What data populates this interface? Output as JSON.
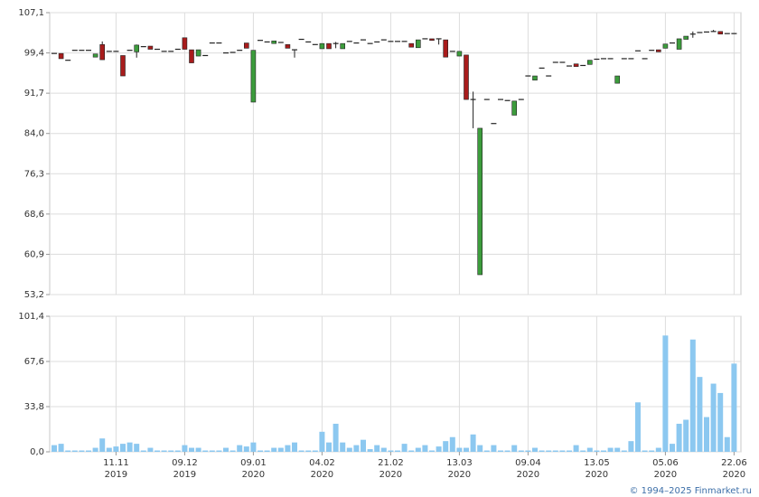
{
  "chart_data": [
    {
      "type": "candlestick",
      "up_color": "#3c9c3c",
      "down_color": "#a81c1c",
      "ylim": [
        53.2,
        107.1
      ],
      "yticks": [
        {
          "value": 53.2,
          "label": "53,2"
        },
        {
          "value": 60.9,
          "label": "60,9"
        },
        {
          "value": 68.6,
          "label": "68,6"
        },
        {
          "value": 76.3,
          "label": "76,3"
        },
        {
          "value": 84.0,
          "label": "84,0"
        },
        {
          "value": 91.7,
          "label": "91,7"
        },
        {
          "value": 99.4,
          "label": "99,4"
        },
        {
          "value": 107.1,
          "label": "107,1"
        }
      ],
      "grid": true,
      "open": [
        99.3,
        99.3,
        98.0,
        99.9,
        99.9,
        99.9,
        98.6,
        101.0,
        99.7,
        99.7,
        98.9,
        99.9,
        99.6,
        100.6,
        100.7,
        100.1,
        99.7,
        99.7,
        100.1,
        102.3,
        100.0,
        98.8,
        98.9,
        101.3,
        101.3,
        99.4,
        99.5,
        99.9,
        101.3,
        90.0,
        101.8,
        101.5,
        101.2,
        101.4,
        101.0,
        100.0,
        102.0,
        101.5,
        101.0,
        100.2,
        101.2,
        101.2,
        100.2,
        101.6,
        101.3,
        101.9,
        101.2,
        101.5,
        101.9,
        101.6,
        101.6,
        101.6,
        101.2,
        100.4,
        102.1,
        102.1,
        102.1,
        101.9,
        99.7,
        98.8,
        99.0,
        90.5,
        57.0,
        90.5,
        85.9,
        90.5,
        90.3,
        87.5,
        90.5,
        95.0,
        94.2,
        96.5,
        95.0,
        97.6,
        97.6,
        96.9,
        97.3,
        97.0,
        97.2,
        98.2,
        98.3,
        98.3,
        93.6,
        98.3,
        98.3,
        99.8,
        98.3,
        99.9,
        100.0,
        100.3,
        101.3,
        100.1,
        102.0,
        103.0,
        103.3,
        103.4,
        103.5,
        103.5,
        103.1,
        103.1
      ],
      "high": [
        99.3,
        99.3,
        98.0,
        99.9,
        99.9,
        99.9,
        99.2,
        101.6,
        99.7,
        99.7,
        98.9,
        99.9,
        101.0,
        100.6,
        100.7,
        100.1,
        99.7,
        99.7,
        100.1,
        102.3,
        100.0,
        100.0,
        98.9,
        101.3,
        101.3,
        99.4,
        99.5,
        99.9,
        101.3,
        99.9,
        101.8,
        101.5,
        101.7,
        101.4,
        101.0,
        100.0,
        102.0,
        101.5,
        101.0,
        101.2,
        101.2,
        101.5,
        101.2,
        101.6,
        101.3,
        101.9,
        101.2,
        101.5,
        101.9,
        101.6,
        101.6,
        101.6,
        101.2,
        101.9,
        102.1,
        102.1,
        102.1,
        101.9,
        99.7,
        99.7,
        99.0,
        92.0,
        85.0,
        90.5,
        85.9,
        90.5,
        90.3,
        90.2,
        90.5,
        95.0,
        95.0,
        96.5,
        95.0,
        97.6,
        97.6,
        96.9,
        97.3,
        97.0,
        98.0,
        98.2,
        98.3,
        98.3,
        95.0,
        98.3,
        98.3,
        99.8,
        98.3,
        99.9,
        100.0,
        101.1,
        101.3,
        102.1,
        102.6,
        103.5,
        103.3,
        103.4,
        103.8,
        103.5,
        103.1,
        103.1
      ],
      "low": [
        99.3,
        98.3,
        98.0,
        99.9,
        99.9,
        99.9,
        98.6,
        98.1,
        99.7,
        99.7,
        95.0,
        99.9,
        98.5,
        100.6,
        100.1,
        100.1,
        99.7,
        99.7,
        100.1,
        100.1,
        97.5,
        98.8,
        98.9,
        101.3,
        101.3,
        99.4,
        99.5,
        99.9,
        100.3,
        90.0,
        101.8,
        101.5,
        101.2,
        101.4,
        100.3,
        98.5,
        102.0,
        101.5,
        101.0,
        100.2,
        100.2,
        100.3,
        100.2,
        101.6,
        101.3,
        101.9,
        101.2,
        101.5,
        101.9,
        101.6,
        101.6,
        101.6,
        100.5,
        100.4,
        102.1,
        101.8,
        101.0,
        98.6,
        99.7,
        98.8,
        90.5,
        85.0,
        57.0,
        90.5,
        85.9,
        90.5,
        90.3,
        87.5,
        90.5,
        95.0,
        94.2,
        96.5,
        95.0,
        97.6,
        97.6,
        96.9,
        96.8,
        97.0,
        97.2,
        98.2,
        98.3,
        98.3,
        93.6,
        98.3,
        98.3,
        99.8,
        98.3,
        99.9,
        99.6,
        100.3,
        101.3,
        100.1,
        102.0,
        102.3,
        103.3,
        103.4,
        103.5,
        103.0,
        103.1,
        103.1
      ],
      "close": [
        99.3,
        98.3,
        98.0,
        99.9,
        99.9,
        99.9,
        99.2,
        98.1,
        99.7,
        99.7,
        95.0,
        99.9,
        100.9,
        100.6,
        100.1,
        100.1,
        99.7,
        99.7,
        100.1,
        100.1,
        97.5,
        100.0,
        98.9,
        101.3,
        101.3,
        99.4,
        99.5,
        99.9,
        100.3,
        99.9,
        101.8,
        101.5,
        101.7,
        101.4,
        100.3,
        100.0,
        102.0,
        101.5,
        101.0,
        101.2,
        100.2,
        101.2,
        101.2,
        101.6,
        101.3,
        101.9,
        101.2,
        101.5,
        101.9,
        101.6,
        101.6,
        101.6,
        100.5,
        101.9,
        102.1,
        101.8,
        102.1,
        98.6,
        99.7,
        99.7,
        90.5,
        90.5,
        85.0,
        90.5,
        85.9,
        90.5,
        90.3,
        90.2,
        90.5,
        95.0,
        95.0,
        96.5,
        95.0,
        97.6,
        97.6,
        96.9,
        96.8,
        97.0,
        98.0,
        98.2,
        98.3,
        98.3,
        95.0,
        98.3,
        98.3,
        99.8,
        98.3,
        99.9,
        99.6,
        101.1,
        101.3,
        102.1,
        102.6,
        103.0,
        103.3,
        103.4,
        103.5,
        103.0,
        103.1,
        103.1
      ]
    },
    {
      "type": "bar",
      "color": "#8cc8f0",
      "ylim": [
        0,
        101.4
      ],
      "yticks": [
        {
          "value": 0,
          "label": "0,0"
        },
        {
          "value": 33.8,
          "label": "33,8"
        },
        {
          "value": 67.6,
          "label": "67,6"
        },
        {
          "value": 101.4,
          "label": "101,4"
        }
      ],
      "grid": true,
      "categories": [
        null,
        null,
        null,
        null,
        null,
        null,
        null,
        null,
        null,
        [
          "11.11",
          "2019"
        ],
        null,
        null,
        null,
        null,
        null,
        null,
        null,
        null,
        null,
        [
          "09.12",
          "2019"
        ],
        null,
        null,
        null,
        null,
        null,
        null,
        null,
        null,
        null,
        [
          "09.01",
          "2020"
        ],
        null,
        null,
        null,
        null,
        null,
        null,
        null,
        null,
        null,
        [
          "04.02",
          "2020"
        ],
        null,
        null,
        null,
        null,
        null,
        null,
        null,
        null,
        null,
        [
          "21.02",
          "2020"
        ],
        null,
        null,
        null,
        null,
        null,
        null,
        null,
        null,
        null,
        [
          "13.03",
          "2020"
        ],
        null,
        null,
        null,
        null,
        null,
        null,
        null,
        null,
        null,
        [
          "09.04",
          "2020"
        ],
        null,
        null,
        null,
        null,
        null,
        null,
        null,
        null,
        null,
        [
          "13.05",
          "2020"
        ],
        null,
        null,
        null,
        null,
        null,
        null,
        null,
        null,
        null,
        [
          "05.06",
          "2020"
        ],
        null,
        null,
        null,
        null,
        null,
        null,
        null,
        null,
        null,
        [
          "22.06",
          "2020"
        ]
      ],
      "values": [
        5,
        6,
        1,
        1,
        1,
        1,
        3,
        10,
        3,
        4,
        6,
        7,
        6,
        1,
        3,
        1,
        1,
        1,
        1,
        5,
        3,
        3,
        1,
        1,
        1,
        3,
        1,
        5,
        4,
        7,
        1,
        1,
        3,
        3,
        5,
        7,
        1,
        1,
        1,
        15,
        7,
        21,
        7,
        3,
        5,
        9,
        2,
        5,
        3,
        1,
        1,
        6,
        1,
        3,
        5,
        1,
        4,
        8,
        11,
        3,
        3,
        13,
        5,
        1,
        5,
        1,
        1,
        5,
        1,
        1,
        3,
        1,
        1,
        1,
        1,
        1,
        5,
        1,
        3,
        1,
        1,
        3,
        3,
        1,
        8,
        37,
        1,
        1,
        3,
        87,
        6,
        21,
        24,
        84,
        56,
        26,
        51,
        44,
        11,
        66
      ]
    }
  ],
  "copyright": "© 1994–2025 Finmarket.ru"
}
